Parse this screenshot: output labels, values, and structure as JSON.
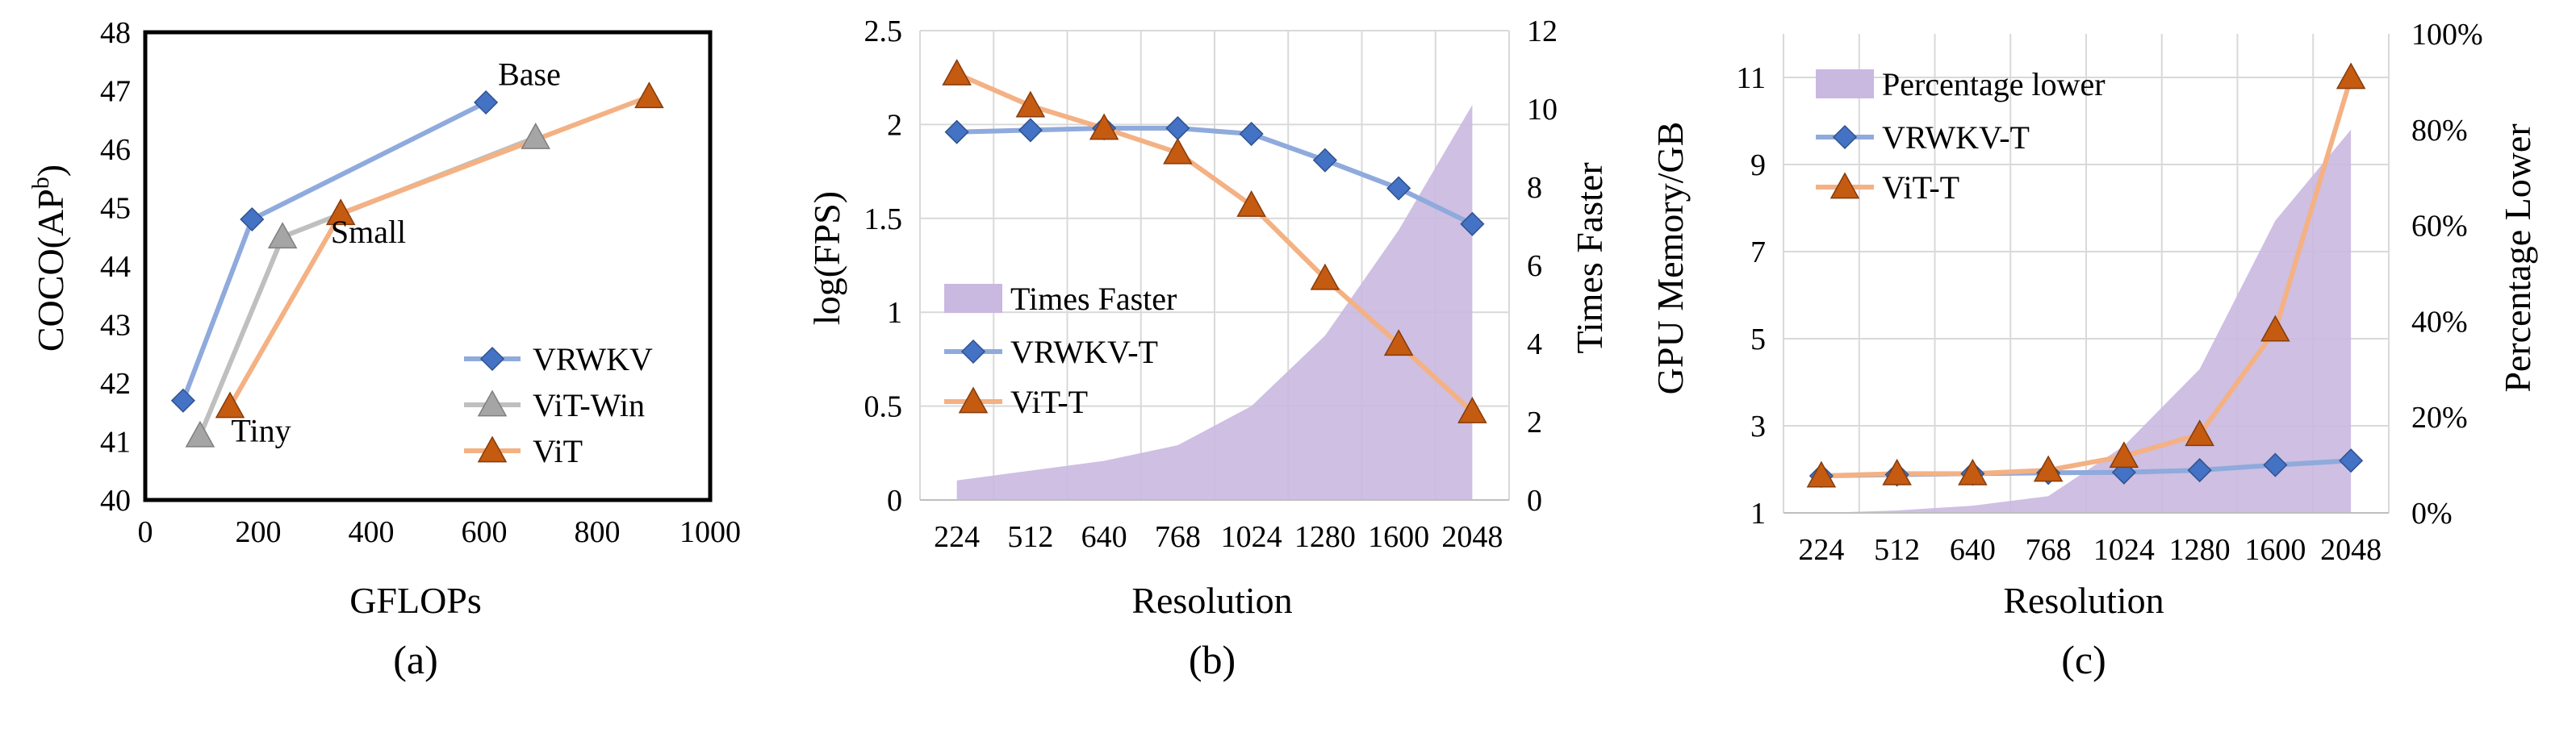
{
  "colors": {
    "vrwkv_line": "#8FAADC",
    "vrwkv_marker": "#4472C4",
    "vitwin_line": "#BFBFBF",
    "vitwin_marker": "#A5A5A5",
    "vit_line": "#F4B183",
    "vit_marker": "#C55A11",
    "area": "#C9B8E0",
    "grid": "#D9D9D9"
  },
  "chart_data": [
    {
      "id": "a",
      "type": "line",
      "caption": "(a)",
      "xlabel": "GFLOPs",
      "ylabel": "COCO(AP",
      "ylabel_sup": "b",
      "ylabel_close": ")",
      "xlim": [
        0,
        1000
      ],
      "ylim": [
        40,
        48
      ],
      "xticks": [
        0,
        200,
        400,
        600,
        800,
        1000
      ],
      "yticks": [
        40,
        41,
        42,
        43,
        44,
        45,
        46,
        47,
        48
      ],
      "grid": false,
      "legend_position": "bottom-right",
      "annotations": [
        {
          "text": "Base",
          "x": 680,
          "y": 47.1
        },
        {
          "text": "Small",
          "x": 395,
          "y": 44.4
        },
        {
          "text": "Tiny",
          "x": 205,
          "y": 41.0
        }
      ],
      "series": [
        {
          "name": "VRWKV",
          "marker": "diamond",
          "x": [
            67,
            189,
            603
          ],
          "y": [
            41.7,
            44.8,
            46.8
          ]
        },
        {
          "name": "ViT-Win",
          "marker": "triangle",
          "x": [
            97,
            243,
            691
          ],
          "y": [
            41.1,
            44.5,
            46.2
          ]
        },
        {
          "name": "ViT",
          "marker": "triangle",
          "x": [
            150,
            346,
            892
          ],
          "y": [
            41.6,
            44.9,
            46.9
          ]
        }
      ]
    },
    {
      "id": "b",
      "type": "line",
      "caption": "(b)",
      "xlabel": "Resolution",
      "ylabel": "log(FPS)",
      "y2label": "Times Faster",
      "categories": [
        "224",
        "512",
        "640",
        "768",
        "1024",
        "1280",
        "1600",
        "2048"
      ],
      "ylim": [
        0,
        2.5
      ],
      "yticks": [
        "0",
        "0.5",
        "1",
        "1.5",
        "2",
        "2.5"
      ],
      "y2lim": [
        0,
        12
      ],
      "y2ticks": [
        0,
        2,
        4,
        6,
        8,
        10,
        12
      ],
      "grid": true,
      "legend_position": "center-left",
      "area": {
        "name": "Times Faster",
        "axis": "y2",
        "values": [
          0.5,
          0.75,
          1.0,
          1.4,
          2.4,
          4.2,
          6.9,
          10.1
        ]
      },
      "series": [
        {
          "name": "VRWKV-T",
          "marker": "diamond",
          "values": [
            1.96,
            1.97,
            1.98,
            1.98,
            1.95,
            1.81,
            1.66,
            1.47
          ]
        },
        {
          "name": "ViT-T",
          "marker": "triangle",
          "values": [
            2.27,
            2.1,
            1.98,
            1.85,
            1.57,
            1.18,
            0.83,
            0.47
          ]
        }
      ]
    },
    {
      "id": "c",
      "type": "line",
      "caption": "(c)",
      "xlabel": "Resolution",
      "ylabel": "GPU Memory/GB",
      "y2label": "Percentage Lower",
      "categories": [
        "224",
        "512",
        "640",
        "768",
        "1024",
        "1280",
        "1600",
        "2048"
      ],
      "ylim": [
        1,
        12
      ],
      "yticks": [
        1,
        3,
        5,
        7,
        9,
        11
      ],
      "y2lim": [
        0,
        100
      ],
      "y2ticks": [
        "0%",
        "20%",
        "40%",
        "60%",
        "80%",
        "100%"
      ],
      "grid": true,
      "legend_position": "top-left",
      "area": {
        "name": "Percentage lower",
        "axis": "y2",
        "values": [
          0,
          0.5,
          1.5,
          3.5,
          14,
          30,
          61,
          80
        ]
      },
      "series": [
        {
          "name": "VRWKV-T",
          "marker": "diamond",
          "values": [
            1.85,
            1.88,
            1.9,
            1.92,
            1.93,
            1.98,
            2.1,
            2.2
          ]
        },
        {
          "name": "ViT-T",
          "marker": "triangle",
          "values": [
            1.85,
            1.9,
            1.9,
            1.98,
            2.3,
            2.8,
            5.2,
            11.0
          ]
        }
      ]
    }
  ]
}
